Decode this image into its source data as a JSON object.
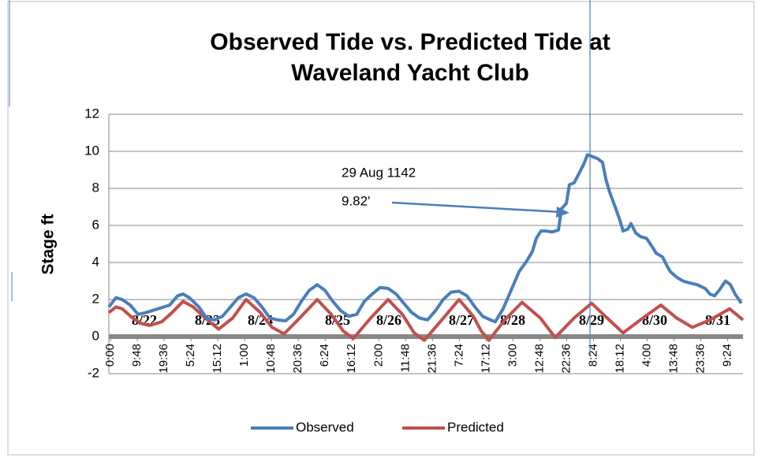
{
  "chart_data": {
    "type": "line",
    "title": [
      "Observed Tide vs. Predicted Tide at",
      "Waveland Yacht Club"
    ],
    "ylabel": "Stage ft",
    "ylim": [
      -2,
      12
    ],
    "yticks": [
      -2,
      0,
      2,
      4,
      6,
      8,
      10,
      12
    ],
    "grid": true,
    "xlim": [
      -0.6,
      231
    ],
    "xticks": [
      {
        "value": 0,
        "label": "0:00"
      },
      {
        "value": 9.8,
        "label": "9:48"
      },
      {
        "value": 19.6,
        "label": "19:36"
      },
      {
        "value": 29.4,
        "label": "5:24"
      },
      {
        "value": 39.2,
        "label": "15:12"
      },
      {
        "value": 49,
        "label": "1:00"
      },
      {
        "value": 58.8,
        "label": "10:48"
      },
      {
        "value": 68.6,
        "label": "20:36"
      },
      {
        "value": 78.4,
        "label": "6:24"
      },
      {
        "value": 88.2,
        "label": "16:12"
      },
      {
        "value": 98,
        "label": "2:00"
      },
      {
        "value": 107.8,
        "label": "11:48"
      },
      {
        "value": 117.6,
        "label": "21:36"
      },
      {
        "value": 127.4,
        "label": "7:24"
      },
      {
        "value": 137.2,
        "label": "17:12"
      },
      {
        "value": 147,
        "label": "3:00"
      },
      {
        "value": 156.8,
        "label": "12:48"
      },
      {
        "value": 166.6,
        "label": "22:36"
      },
      {
        "value": 176.4,
        "label": "8:24"
      },
      {
        "value": 186.2,
        "label": "18:12"
      },
      {
        "value": 196,
        "label": "4:00"
      },
      {
        "value": 205.8,
        "label": "13:48"
      },
      {
        "value": 215.6,
        "label": "23:36"
      },
      {
        "value": 225.4,
        "label": "9:24"
      }
    ],
    "day_labels": [
      "8/22",
      "8/23",
      "8/24",
      "8/25",
      "8/26",
      "8/27",
      "8/28",
      "8/29",
      "8/30",
      "8/31"
    ],
    "annotation": [
      "29 Aug 1142",
      "9.82'"
    ],
    "legend": "bottom",
    "series": [
      {
        "name": "Observed",
        "color": "#4a7ebb",
        "x": [
          -0.6,
          2.0,
          4.3,
          7.2,
          10.1,
          13.0,
          17.3,
          21.6,
          24.5,
          26.5,
          28.8,
          32.3,
          35.1,
          38.0,
          40.9,
          43.8,
          46.7,
          49.5,
          52.4,
          55.3,
          58.2,
          61.1,
          63.9,
          66.8,
          69.7,
          72.6,
          75.5,
          78.3,
          81.2,
          84.1,
          87.0,
          89.9,
          92.7,
          95.6,
          98.5,
          101.4,
          104.3,
          107.1,
          110.0,
          112.9,
          115.8,
          118.7,
          121.5,
          124.4,
          127.3,
          130.2,
          133.1,
          135.9,
          138.8,
          140.5,
          143.4,
          146.3,
          149.2,
          152.1,
          154.1,
          155.5,
          157.2,
          159.0,
          161.3,
          163.6,
          164.7,
          166.5,
          167.6,
          169.3,
          171.1,
          172.8,
          174.2,
          176.3,
          178.0,
          179.7,
          180.9,
          182.3,
          184.3,
          186.0,
          187.2,
          188.9,
          190.1,
          191.8,
          193.5,
          195.8,
          197.6,
          199.3,
          201.6,
          203.3,
          204.5,
          206.8,
          209.1,
          211.4,
          214.3,
          217.2,
          218.9,
          220.6,
          222.3,
          224.6,
          226.4,
          228.1,
          230.4
        ],
        "values": [
          1.6,
          2.1,
          2.0,
          1.7,
          1.2,
          1.3,
          1.5,
          1.7,
          2.2,
          2.3,
          2.1,
          1.6,
          1.0,
          0.9,
          1.1,
          1.6,
          2.1,
          2.3,
          2.1,
          1.6,
          1.0,
          0.9,
          0.85,
          1.2,
          1.9,
          2.5,
          2.8,
          2.5,
          1.9,
          1.4,
          1.1,
          1.2,
          1.9,
          2.3,
          2.65,
          2.6,
          2.3,
          1.8,
          1.3,
          1.0,
          0.9,
          1.4,
          2.0,
          2.4,
          2.45,
          2.2,
          1.6,
          1.1,
          0.9,
          0.8,
          1.5,
          2.5,
          3.5,
          4.1,
          4.6,
          5.3,
          5.7,
          5.7,
          5.65,
          5.75,
          6.9,
          7.2,
          8.2,
          8.3,
          8.8,
          9.3,
          9.82,
          9.7,
          9.6,
          9.4,
          8.5,
          7.8,
          7.0,
          6.3,
          5.7,
          5.8,
          6.1,
          5.6,
          5.4,
          5.3,
          4.9,
          4.5,
          4.3,
          3.8,
          3.5,
          3.2,
          3.0,
          2.9,
          2.8,
          2.6,
          2.3,
          2.2,
          2.5,
          3.0,
          2.8,
          2.3,
          1.8
        ]
      },
      {
        "name": "Predicted",
        "color": "#c0504d",
        "x": [
          -0.6,
          2.0,
          4.3,
          8.1,
          11.5,
          14.4,
          18.7,
          22.5,
          26.5,
          30.2,
          34.6,
          39.5,
          44.6,
          49.5,
          54.7,
          59.0,
          63.4,
          69.1,
          75.5,
          80.6,
          85.0,
          88.7,
          95.0,
          101.4,
          106.6,
          110.9,
          114.6,
          121.0,
          127.3,
          132.5,
          135.4,
          138.2,
          144.0,
          150.3,
          157.0,
          162.4,
          169.3,
          175.7,
          181.4,
          187.2,
          194.4,
          201.0,
          206.8,
          212.5,
          218.9,
          226.1,
          231.0
        ],
        "values": [
          1.3,
          1.6,
          1.5,
          1.0,
          0.7,
          0.6,
          0.8,
          1.3,
          1.9,
          1.6,
          1.0,
          0.4,
          1.0,
          2.0,
          1.3,
          0.5,
          0.15,
          1.0,
          2.0,
          1.2,
          0.3,
          -0.1,
          1.0,
          2.0,
          1.2,
          0.2,
          -0.2,
          0.9,
          2.0,
          1.1,
          0.3,
          -0.2,
          0.9,
          1.85,
          1.0,
          -0.05,
          1.0,
          1.8,
          1.0,
          0.2,
          1.0,
          1.7,
          1.0,
          0.5,
          0.9,
          1.5,
          0.9
        ]
      }
    ]
  }
}
